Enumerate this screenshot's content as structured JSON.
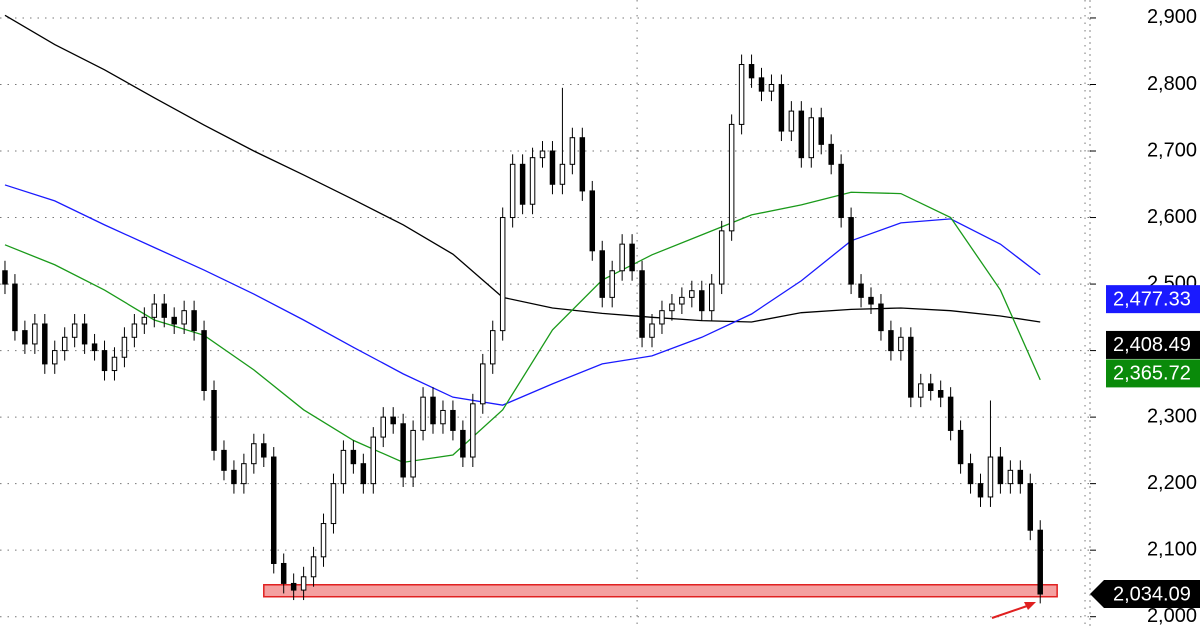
{
  "chart_data": {
    "type": "candlestick",
    "xlim": [
      -0.5,
      109
    ],
    "ylim": [
      1980,
      2927
    ],
    "yticks": [
      {
        "value": 2000,
        "label": "2,000"
      },
      {
        "value": 2100,
        "label": "2,100"
      },
      {
        "value": 2200,
        "label": "2,200"
      },
      {
        "value": 2300,
        "label": "2,300"
      },
      {
        "value": 2400,
        "label": "2,400"
      },
      {
        "value": 2500,
        "label": "2,500"
      },
      {
        "value": 2600,
        "label": "2,600"
      },
      {
        "value": 2700,
        "label": "2,700"
      },
      {
        "value": 2800,
        "label": "2,800"
      },
      {
        "value": 2900,
        "label": "2,900"
      }
    ],
    "xgrid": [
      63.5,
      108.5
    ],
    "grid": true,
    "up_color": "#ffffff",
    "down_color": "#000000",
    "ohlc": [
      [
        2520,
        2535,
        2485,
        2500
      ],
      [
        2500,
        2515,
        2415,
        2430
      ],
      [
        2430,
        2445,
        2395,
        2410
      ],
      [
        2410,
        2455,
        2395,
        2440
      ],
      [
        2440,
        2455,
        2365,
        2380
      ],
      [
        2380,
        2415,
        2365,
        2400
      ],
      [
        2400,
        2435,
        2385,
        2420
      ],
      [
        2420,
        2455,
        2405,
        2440
      ],
      [
        2440,
        2455,
        2395,
        2410
      ],
      [
        2410,
        2425,
        2385,
        2400
      ],
      [
        2400,
        2415,
        2355,
        2370
      ],
      [
        2370,
        2405,
        2355,
        2390
      ],
      [
        2390,
        2435,
        2375,
        2420
      ],
      [
        2420,
        2455,
        2405,
        2440
      ],
      [
        2440,
        2465,
        2425,
        2450
      ],
      [
        2450,
        2485,
        2435,
        2470
      ],
      [
        2470,
        2485,
        2435,
        2450
      ],
      [
        2450,
        2465,
        2425,
        2440
      ],
      [
        2440,
        2475,
        2425,
        2460
      ],
      [
        2460,
        2475,
        2415,
        2430
      ],
      [
        2430,
        2445,
        2325,
        2340
      ],
      [
        2340,
        2355,
        2235,
        2250
      ],
      [
        2250,
        2265,
        2205,
        2220
      ],
      [
        2220,
        2235,
        2185,
        2200
      ],
      [
        2200,
        2245,
        2185,
        2230
      ],
      [
        2230,
        2275,
        2215,
        2260
      ],
      [
        2260,
        2275,
        2225,
        2240
      ],
      [
        2240,
        2255,
        2065,
        2080
      ],
      [
        2080,
        2095,
        2035,
        2050
      ],
      [
        2050,
        2065,
        2025,
        2040
      ],
      [
        2040,
        2075,
        2025,
        2060
      ],
      [
        2060,
        2105,
        2045,
        2090
      ],
      [
        2090,
        2155,
        2075,
        2140
      ],
      [
        2140,
        2215,
        2125,
        2200
      ],
      [
        2200,
        2265,
        2185,
        2250
      ],
      [
        2250,
        2265,
        2215,
        2230
      ],
      [
        2230,
        2245,
        2185,
        2200
      ],
      [
        2200,
        2285,
        2185,
        2270
      ],
      [
        2270,
        2315,
        2255,
        2300
      ],
      [
        2300,
        2315,
        2275,
        2290
      ],
      [
        2290,
        2305,
        2195,
        2210
      ],
      [
        2210,
        2295,
        2195,
        2280
      ],
      [
        2280,
        2345,
        2265,
        2330
      ],
      [
        2330,
        2345,
        2275,
        2290
      ],
      [
        2290,
        2325,
        2275,
        2310
      ],
      [
        2310,
        2325,
        2265,
        2280
      ],
      [
        2280,
        2295,
        2225,
        2240
      ],
      [
        2240,
        2335,
        2225,
        2320
      ],
      [
        2320,
        2395,
        2305,
        2380
      ],
      [
        2380,
        2445,
        2365,
        2430
      ],
      [
        2430,
        2615,
        2415,
        2600
      ],
      [
        2600,
        2695,
        2585,
        2680
      ],
      [
        2680,
        2695,
        2605,
        2620
      ],
      [
        2620,
        2705,
        2605,
        2690
      ],
      [
        2690,
        2715,
        2675,
        2700
      ],
      [
        2700,
        2715,
        2635,
        2650
      ],
      [
        2650,
        2795,
        2635,
        2680
      ],
      [
        2680,
        2735,
        2665,
        2720
      ],
      [
        2720,
        2735,
        2625,
        2640
      ],
      [
        2640,
        2655,
        2535,
        2550
      ],
      [
        2550,
        2565,
        2465,
        2480
      ],
      [
        2480,
        2535,
        2465,
        2520
      ],
      [
        2520,
        2575,
        2505,
        2560
      ],
      [
        2560,
        2575,
        2505,
        2520
      ],
      [
        2520,
        2535,
        2405,
        2420
      ],
      [
        2420,
        2455,
        2405,
        2440
      ],
      [
        2440,
        2475,
        2425,
        2460
      ],
      [
        2460,
        2485,
        2445,
        2470
      ],
      [
        2470,
        2495,
        2455,
        2480
      ],
      [
        2480,
        2505,
        2465,
        2490
      ],
      [
        2490,
        2505,
        2445,
        2460
      ],
      [
        2460,
        2515,
        2445,
        2500
      ],
      [
        2500,
        2595,
        2485,
        2580
      ],
      [
        2580,
        2755,
        2565,
        2740
      ],
      [
        2740,
        2845,
        2725,
        2830
      ],
      [
        2830,
        2845,
        2795,
        2810
      ],
      [
        2810,
        2825,
        2775,
        2790
      ],
      [
        2790,
        2815,
        2775,
        2800
      ],
      [
        2800,
        2815,
        2715,
        2730
      ],
      [
        2730,
        2775,
        2715,
        2760
      ],
      [
        2760,
        2775,
        2675,
        2690
      ],
      [
        2690,
        2765,
        2675,
        2750
      ],
      [
        2750,
        2765,
        2695,
        2710
      ],
      [
        2710,
        2725,
        2665,
        2680
      ],
      [
        2680,
        2695,
        2585,
        2600
      ],
      [
        2600,
        2615,
        2485,
        2500
      ],
      [
        2500,
        2515,
        2465,
        2480
      ],
      [
        2480,
        2495,
        2455,
        2470
      ],
      [
        2470,
        2485,
        2415,
        2430
      ],
      [
        2430,
        2445,
        2385,
        2400
      ],
      [
        2400,
        2435,
        2385,
        2420
      ],
      [
        2420,
        2435,
        2315,
        2330
      ],
      [
        2330,
        2365,
        2315,
        2350
      ],
      [
        2350,
        2365,
        2325,
        2340
      ],
      [
        2340,
        2355,
        2315,
        2330
      ],
      [
        2330,
        2345,
        2265,
        2280
      ],
      [
        2280,
        2295,
        2215,
        2230
      ],
      [
        2230,
        2245,
        2185,
        2200
      ],
      [
        2200,
        2215,
        2165,
        2180
      ],
      [
        2180,
        2325,
        2165,
        2240
      ],
      [
        2240,
        2255,
        2185,
        2200
      ],
      [
        2200,
        2235,
        2185,
        2220
      ],
      [
        2220,
        2235,
        2185,
        2200
      ],
      [
        2200,
        2215,
        2115,
        2130
      ],
      [
        2130,
        2145,
        2020,
        2034.09
      ]
    ],
    "series": [
      {
        "color": "#000000",
        "x": [
          0,
          5,
          10,
          15,
          20,
          25,
          30,
          35,
          40,
          45,
          50,
          55,
          60,
          65,
          70,
          75,
          80,
          85,
          90,
          95,
          100,
          104
        ],
        "values": [
          2904,
          2860,
          2822,
          2780,
          2739,
          2700,
          2664,
          2627,
          2589,
          2545,
          2480,
          2464,
          2456,
          2450,
          2445,
          2443,
          2457,
          2462,
          2464,
          2460,
          2452,
          2443
        ]
      },
      {
        "color": "#1a1aff",
        "x": [
          0,
          5,
          10,
          15,
          20,
          25,
          30,
          35,
          40,
          45,
          50,
          55,
          60,
          65,
          70,
          75,
          80,
          85,
          90,
          95,
          100,
          104
        ],
        "values": [
          2649,
          2625,
          2589,
          2555,
          2521,
          2485,
          2446,
          2405,
          2365,
          2330,
          2318,
          2350,
          2380,
          2392,
          2420,
          2455,
          2505,
          2565,
          2592,
          2598,
          2560,
          2514
        ]
      },
      {
        "color": "#1a9a1a",
        "x": [
          0,
          5,
          10,
          15,
          20,
          25,
          30,
          35,
          40,
          45,
          50,
          55,
          60,
          65,
          70,
          75,
          80,
          85,
          90,
          95,
          100,
          104
        ],
        "values": [
          2559,
          2529,
          2491,
          2446,
          2423,
          2371,
          2311,
          2265,
          2232,
          2243,
          2311,
          2431,
          2506,
          2544,
          2574,
          2604,
          2619,
          2638,
          2636,
          2600,
          2491,
          2356
        ]
      }
    ],
    "price_labels": [
      {
        "value": 2477.33,
        "label": "2,477.33",
        "color": "#1a1aff"
      },
      {
        "value": 2408.49,
        "label": "2,408.49",
        "color": "#000000"
      },
      {
        "value": 2365.72,
        "label": "2,365.72",
        "color": "#0a8a0a"
      },
      {
        "value": 2034.09,
        "label": "2,034.09",
        "color": "#000000"
      }
    ],
    "support_zone": {
      "low": 2030,
      "high": 2048,
      "x_from": 26,
      "x_to": 105.7,
      "color": "#f4a0a0"
    }
  }
}
